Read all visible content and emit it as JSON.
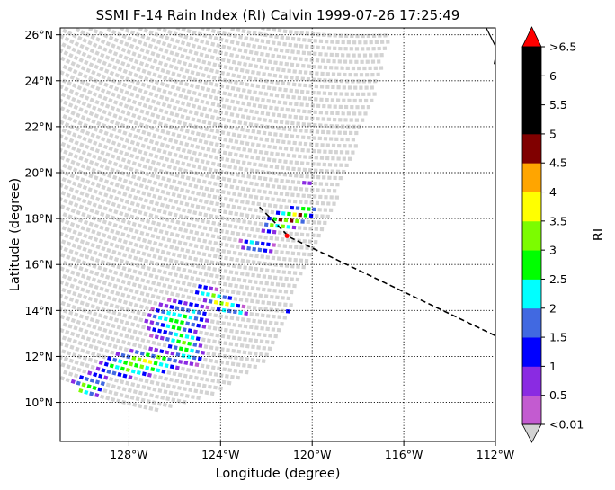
{
  "chart_data": {
    "type": "heatmap",
    "title": "SSMI F-14 Rain Index (RI) Calvin 1999-07-26 17:25:49",
    "xlabel": "Longitude (degree)",
    "ylabel": "Latitude (degree)",
    "xlim": [
      -131,
      -112
    ],
    "ylim": [
      8.3,
      26.3
    ],
    "x_tick_labels": [
      "128°W",
      "124°W",
      "120°W",
      "116°W",
      "112°W"
    ],
    "x_ticks": [
      -128,
      -124,
      -120,
      -116,
      -112
    ],
    "y_tick_labels": [
      "10°N",
      "12°N",
      "14°N",
      "16°N",
      "18°N",
      "20°N",
      "22°N",
      "24°N",
      "26°N"
    ],
    "y_ticks": [
      10,
      12,
      14,
      16,
      18,
      20,
      22,
      24,
      26
    ],
    "grid": true,
    "colorbar": {
      "label": "RI",
      "boundaries": [
        0.01,
        0.5,
        1,
        1.5,
        2,
        2.5,
        3,
        3.5,
        4,
        4.5,
        5,
        5.5,
        6,
        6.5
      ],
      "tick_labels": [
        "<0.01",
        "0.5",
        "1",
        "1.5",
        "2",
        "2.5",
        "3",
        "3.5",
        "4",
        "4.5",
        "5",
        "5.5",
        "6",
        ">6.5"
      ],
      "colors": [
        "#c35bd0",
        "#8a2be2",
        "#0000ff",
        "#4169e1",
        "#00ffff",
        "#00ff00",
        "#7cfc00",
        "#ffff00",
        "#ffa500",
        "#800000",
        "#000000",
        "#000000",
        "#000000"
      ],
      "under_color": "#d3d3d3",
      "over_color": "#ff0000",
      "extend": "both"
    },
    "swath": {
      "no_rain_color": "#d3d3d3",
      "outline": [
        [
          -131,
          11.1
        ],
        [
          -129.6,
          10.1
        ],
        [
          -128.2,
          9.75
        ],
        [
          -126.5,
          9.65
        ],
        [
          -124.7,
          10.2
        ],
        [
          -123.2,
          11.0
        ],
        [
          -122.0,
          11.8
        ],
        [
          -120.8,
          14.5
        ],
        [
          -119.4,
          17.6
        ],
        [
          -118.1,
          21.1
        ],
        [
          -117.2,
          23.6
        ],
        [
          -116.5,
          26.3
        ],
        [
          -131,
          26.3
        ]
      ]
    },
    "rain_clusters": [
      {
        "lon": -121.0,
        "lat": 18.0,
        "rlon": 1.2,
        "rlat": 0.4,
        "tilt": 20,
        "peak": 4.0
      },
      {
        "lon": -122.4,
        "lat": 16.8,
        "rlon": 0.7,
        "rlat": 0.35,
        "tilt": -10,
        "peak": 1.8
      },
      {
        "lon": -124.0,
        "lat": 14.4,
        "rlon": 1.2,
        "rlat": 0.35,
        "tilt": -28,
        "peak": 3.0
      },
      {
        "lon": -125.9,
        "lat": 13.6,
        "rlon": 1.3,
        "rlat": 0.8,
        "tilt": 10,
        "peak": 2.2
      },
      {
        "lon": -125.6,
        "lat": 12.6,
        "rlon": 0.6,
        "rlat": 1.0,
        "tilt": 40,
        "peak": 3.0
      },
      {
        "lon": -127.5,
        "lat": 11.7,
        "rlon": 1.7,
        "rlat": 0.55,
        "tilt": 5,
        "peak": 3.0
      },
      {
        "lon": -129.9,
        "lat": 10.6,
        "rlon": 1.0,
        "rlat": 0.55,
        "tilt": 30,
        "peak": 2.4
      },
      {
        "lon": -120.8,
        "lat": 13.9,
        "rlon": 0.4,
        "rlat": 0.2,
        "tilt": 0,
        "peak": 1.2
      },
      {
        "lon": -120.2,
        "lat": 19.6,
        "rlon": 0.3,
        "rlat": 0.2,
        "tilt": 0,
        "peak": 0.6
      }
    ],
    "track": {
      "style": "dashed",
      "color": "#000000",
      "points": [
        [
          -122.3,
          18.5
        ],
        [
          -121.0,
          17.2
        ],
        [
          -112.0,
          12.9
        ]
      ],
      "marker": {
        "lon": -121.1,
        "lat": 17.25,
        "color": "#ff0000"
      }
    },
    "coastline": {
      "color": "#000000",
      "points": [
        [
          -112.4,
          26.3
        ],
        [
          -112.1,
          25.7
        ],
        [
          -111.95,
          25.4
        ],
        [
          -112.0,
          25.0
        ],
        [
          -112.05,
          24.75
        ],
        [
          -111.9,
          24.6
        ]
      ]
    }
  }
}
